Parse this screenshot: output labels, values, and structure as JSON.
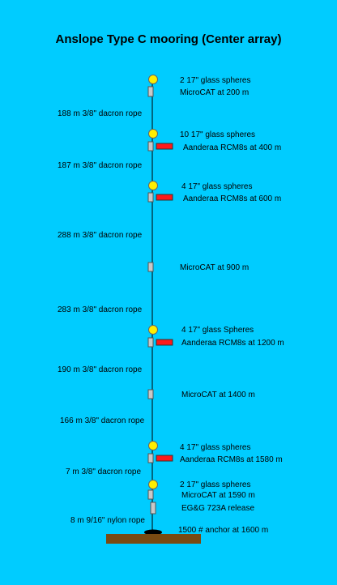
{
  "title": "Anslope Type C mooring (Center array)",
  "colors": {
    "background": "#00ccff",
    "float": "#ffee00",
    "current_meter": "#ff1a1a",
    "instrument": "#c8c8c8",
    "anchor": "#7a4a12",
    "line": "#000000"
  },
  "labels": {
    "float_1": "2 17\" glass spheres",
    "inst_1": "MicroCAT at 200 m",
    "rope_1": "188 m 3/8\" dacron rope",
    "float_2": "10 17\" glass spheres",
    "inst_2": "Aanderaa RCM8s at 400 m",
    "rope_2": "187 m 3/8\" dacron rope",
    "float_3": "4 17\" glass spheres",
    "inst_3": "Aanderaa RCM8s at 600 m",
    "rope_3": "288 m 3/8\" dacron rope",
    "inst_4": "MicroCAT at 900 m",
    "rope_4": "283 m 3/8\" dacron rope",
    "float_4": "4 17\" glass Spheres",
    "inst_5": "Aanderaa RCM8s at 1200 m",
    "rope_5": "190 m 3/8\" dacron rope",
    "inst_6": "MicroCAT at 1400 m",
    "rope_6": "166 m 3/8\" dacron rope",
    "float_5": "4 17\" glass spheres",
    "inst_7": "Aanderaa RCM8s at 1580 m",
    "rope_7": "7 m 3/8\" dacron rope",
    "float_6": "2 17\" glass spheres",
    "inst_8": "MicroCAT at 1590 m",
    "release": "EG&G 723A release",
    "rope_8": "8 m 9/16\" nylon rope",
    "anchor": "1500 # anchor  at 1600 m"
  }
}
